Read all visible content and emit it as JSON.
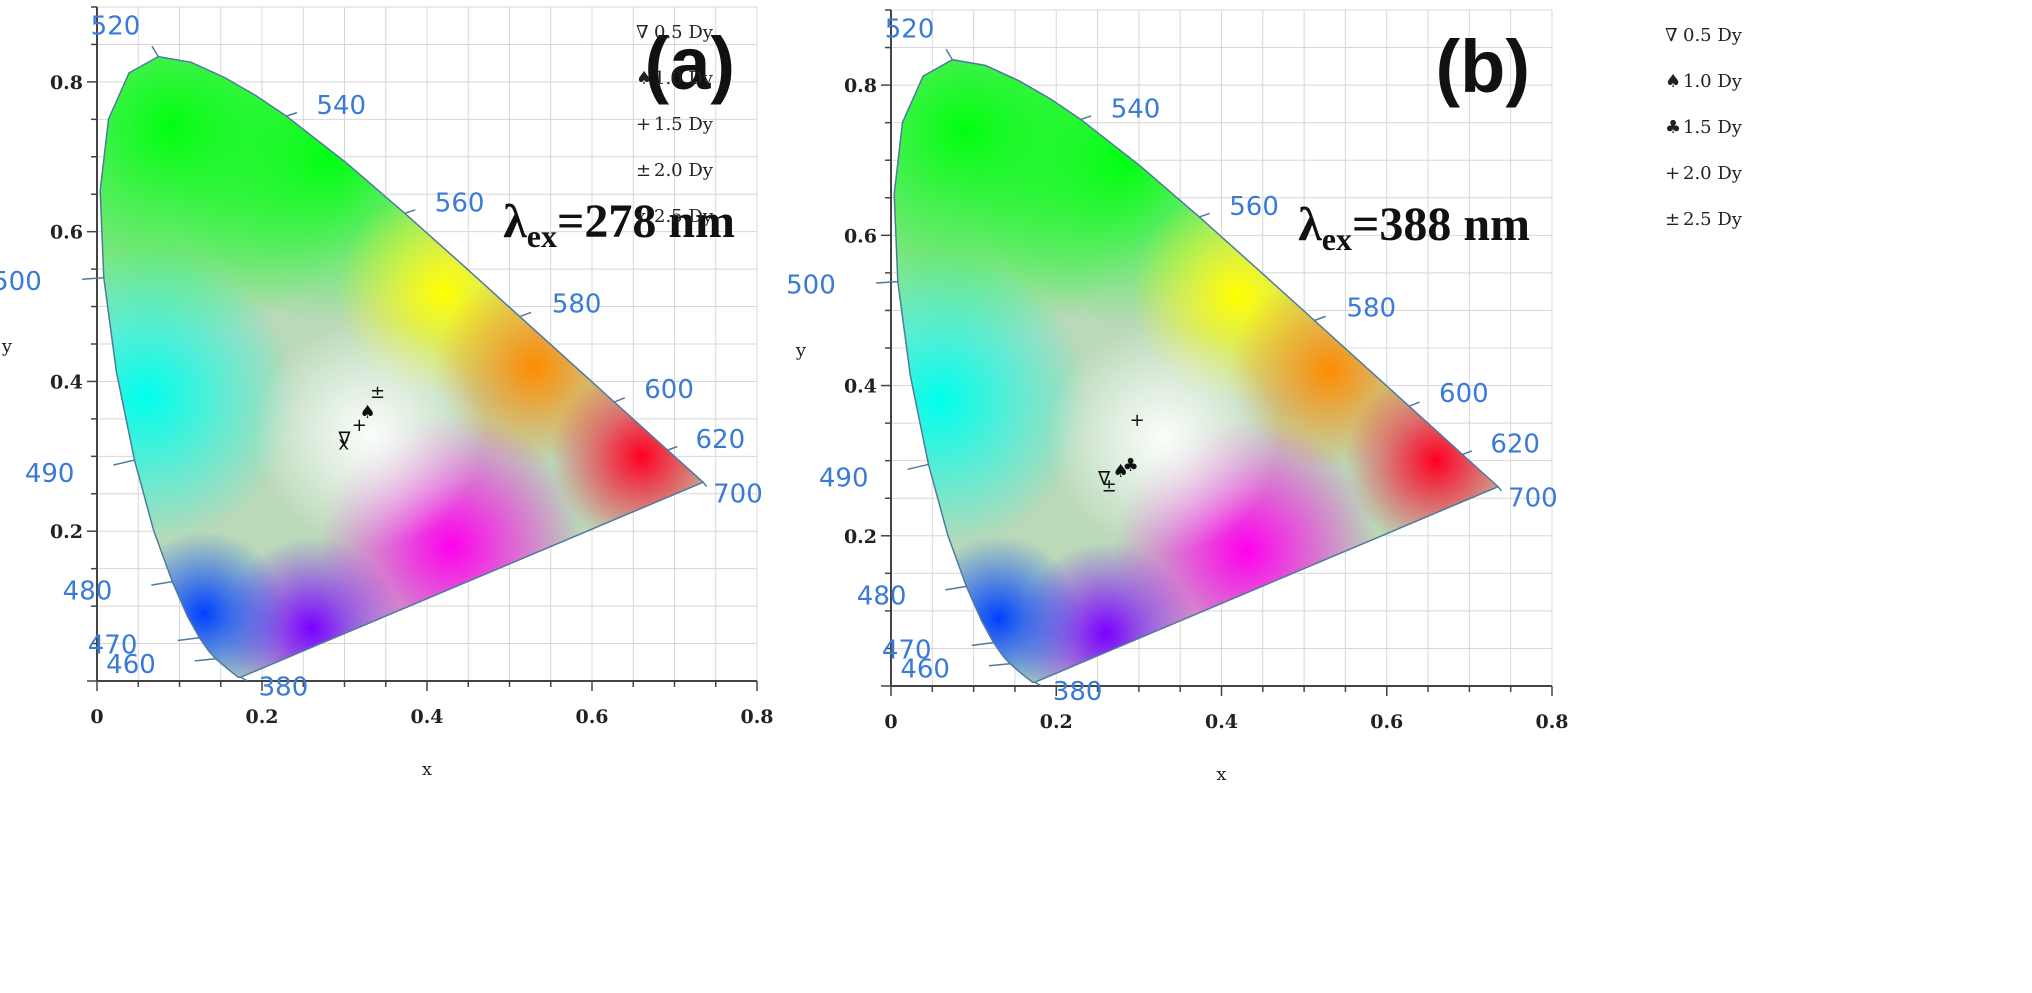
{
  "chart_data": [
    {
      "type": "scatter",
      "panel_label": "(a)",
      "excitation": {
        "symbol": "λ",
        "sub": "ex",
        "value": "=278 nm"
      },
      "xlabel": "x",
      "ylabel": "y",
      "xlim": [
        0,
        0.8
      ],
      "ylim": [
        0,
        0.9
      ],
      "x_ticks": [
        "0",
        "0.2",
        "0.4",
        "0.6",
        "0.8"
      ],
      "y_ticks": [
        "0.2",
        "0.4",
        "0.6",
        "0.8"
      ],
      "wavelength_labels": [
        "380",
        "460",
        "470",
        "480",
        "490",
        "500",
        "520",
        "540",
        "560",
        "580",
        "600",
        "620",
        "700"
      ],
      "series": [
        {
          "name": "0.5 Dy",
          "marker": "∇",
          "x": 0.3,
          "y": 0.324
        },
        {
          "name": "1.0 Dy",
          "marker": "♠",
          "x": 0.328,
          "y": 0.359
        },
        {
          "name": "1.5 Dy",
          "marker": "+",
          "x": 0.318,
          "y": 0.342
        },
        {
          "name": "2.0 Dy",
          "marker": "±",
          "x": 0.34,
          "y": 0.386
        },
        {
          "name": "2.5 Dy",
          "marker": "x",
          "x": 0.299,
          "y": 0.317
        }
      ]
    },
    {
      "type": "scatter",
      "panel_label": "(b)",
      "excitation": {
        "symbol": "λ",
        "sub": "ex",
        "value": "=388 nm"
      },
      "xlabel": "x",
      "ylabel": "y",
      "xlim": [
        0,
        0.8
      ],
      "ylim": [
        0,
        0.9
      ],
      "x_ticks": [
        "0",
        "0.2",
        "0.4",
        "0.6",
        "0.8"
      ],
      "y_ticks": [
        "0.2",
        "0.4",
        "0.6",
        "0.8"
      ],
      "wavelength_labels": [
        "380",
        "460",
        "470",
        "480",
        "490",
        "500",
        "520",
        "540",
        "560",
        "580",
        "600",
        "620",
        "700"
      ],
      "series": [
        {
          "name": "0.5 Dy",
          "marker": "∇",
          "x": 0.258,
          "y": 0.277
        },
        {
          "name": "1.0 Dy",
          "marker": "♠",
          "x": 0.278,
          "y": 0.286
        },
        {
          "name": "1.5 Dy",
          "marker": "♣",
          "x": 0.29,
          "y": 0.294
        },
        {
          "name": "2.0 Dy",
          "marker": "+",
          "x": 0.298,
          "y": 0.354
        },
        {
          "name": "2.5 Dy",
          "marker": "±",
          "x": 0.264,
          "y": 0.267
        }
      ]
    }
  ]
}
